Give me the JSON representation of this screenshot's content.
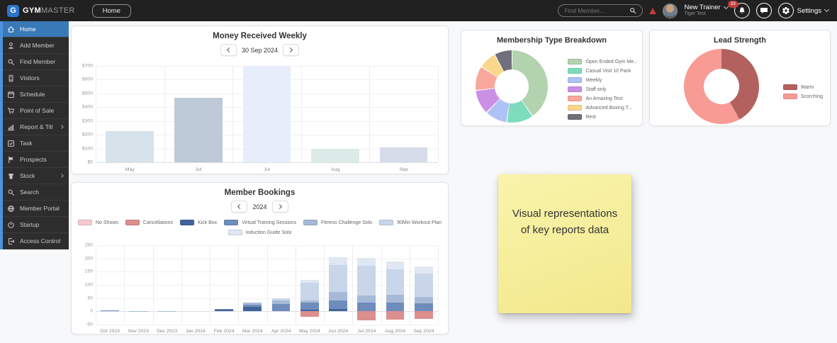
{
  "topbar": {
    "brand": {
      "logo_letter": "G",
      "name_bold": "GYM",
      "name_light": "MASTER"
    },
    "home_button": "Home",
    "search_placeholder": "Find Member...",
    "user": {
      "name": "New Trainer",
      "subtitle": "Tiger Test"
    },
    "notification_badge": "33",
    "settings_label": "Settings"
  },
  "sidebar": {
    "active_color": "#3a79b8",
    "items": [
      {
        "label": "Home",
        "icon": "home",
        "active": true,
        "has_submenu": false
      },
      {
        "label": "Add Member",
        "icon": "add-member",
        "active": false,
        "has_submenu": false
      },
      {
        "label": "Find Member",
        "icon": "find-member",
        "active": false,
        "has_submenu": false
      },
      {
        "label": "Visitors",
        "icon": "visitors",
        "active": false,
        "has_submenu": false
      },
      {
        "label": "Schedule",
        "icon": "schedule",
        "active": false,
        "has_submenu": false
      },
      {
        "label": "Point of Sale",
        "icon": "point-of-sale",
        "active": false,
        "has_submenu": false
      },
      {
        "label": "Report & Till",
        "icon": "report-till",
        "active": false,
        "has_submenu": true
      },
      {
        "label": "Task",
        "icon": "task",
        "active": false,
        "has_submenu": false
      },
      {
        "label": "Prospects",
        "icon": "prospects",
        "active": false,
        "has_submenu": false
      },
      {
        "label": "Stock",
        "icon": "stock",
        "active": false,
        "has_submenu": true
      },
      {
        "label": "Search",
        "icon": "search",
        "active": false,
        "has_submenu": false
      },
      {
        "label": "Member Portal",
        "icon": "member-portal",
        "active": false,
        "has_submenu": false
      },
      {
        "label": "Startup",
        "icon": "startup",
        "active": false,
        "has_submenu": false
      },
      {
        "label": "Access Control",
        "icon": "access-control",
        "active": false,
        "has_submenu": false
      }
    ]
  },
  "sticky_note": {
    "text": "Visual representations of key reports data",
    "color": "#f2e88c"
  },
  "chart_data": [
    {
      "id": "money_received_weekly",
      "type": "bar",
      "title": "Money Received Weekly",
      "nav": {
        "label": "30 Sep 2024"
      },
      "categories": [
        "May",
        "Jul",
        "Jul",
        "Aug",
        "Sep"
      ],
      "values": [
        225,
        470,
        700,
        100,
        110
      ],
      "bar_colors": [
        "#d7e2ea",
        "#bec9d7",
        "#e7eef9",
        "#dcebe7",
        "#d6dcea"
      ],
      "ylim": [
        0,
        700
      ],
      "yticks": [
        0,
        100,
        200,
        300,
        400,
        500,
        600,
        700
      ],
      "y_prefix": "$",
      "grid": true
    },
    {
      "id": "membership_type_breakdown",
      "type": "pie",
      "title": "Membership Type Breakdown",
      "legend_position": "right",
      "slice_gap": true,
      "slices": [
        {
          "label": "Open Ended Gym Me...",
          "value": 40,
          "color": "#b2d3ae"
        },
        {
          "label": "Casual Visit 10 Pack",
          "value": 12,
          "color": "#7cdcbc"
        },
        {
          "label": "Weekly",
          "value": 10,
          "color": "#aec2f5"
        },
        {
          "label": "Staff only",
          "value": 11,
          "color": "#cb8fe6"
        },
        {
          "label": "An Amazing Test",
          "value": 11,
          "color": "#f9a99c"
        },
        {
          "label": "Advanced Boxing T...",
          "value": 8,
          "color": "#fbd78c"
        },
        {
          "label": "Rest",
          "value": 8,
          "color": "#6f707c"
        }
      ]
    },
    {
      "id": "lead_strength",
      "type": "pie",
      "title": "Lead Strength",
      "legend_position": "right",
      "slice_gap": false,
      "slices": [
        {
          "label": "Warm",
          "value": 42,
          "color": "#b2615e"
        },
        {
          "label": "Scorching",
          "value": 58,
          "color": "#f79b94"
        }
      ]
    },
    {
      "id": "member_bookings",
      "type": "stacked-bar",
      "title": "Member Bookings",
      "nav": {
        "label": "2024"
      },
      "ylim": [
        -50,
        250
      ],
      "yticks": [
        -50,
        0,
        50,
        100,
        150,
        200,
        250
      ],
      "grid": true,
      "categories": [
        "Oct 2023",
        "Nov 2023",
        "Dec 2023",
        "Jan 2024",
        "Feb 2024",
        "Mar 2024",
        "Apr 2024",
        "May 2024",
        "Jun 2024",
        "Jul 2024",
        "Aug 2024",
        "Sep 2024"
      ],
      "series": [
        {
          "name": "No Shows",
          "color": "#f5c9cf",
          "values": [
            0,
            0,
            0,
            0,
            0,
            0,
            0,
            0,
            0,
            0,
            0,
            0
          ]
        },
        {
          "name": "Cancellations",
          "color": "#dd8e8e",
          "values": [
            0,
            0,
            0,
            0,
            0,
            0,
            0,
            -20,
            0,
            -33,
            -30,
            -28
          ]
        },
        {
          "name": "Kick Box",
          "color": "#41639b",
          "values": [
            0,
            0,
            0,
            0,
            8,
            18,
            0,
            5,
            10,
            0,
            0,
            0
          ]
        },
        {
          "name": "Virtual Training Sessions",
          "color": "#6e8cbc",
          "values": [
            3,
            0,
            0,
            0,
            2,
            8,
            28,
            28,
            30,
            32,
            32,
            30
          ]
        },
        {
          "name": "Fitness Challenge Solo",
          "color": "#a6bad8",
          "values": [
            0,
            2,
            2,
            0,
            0,
            8,
            12,
            7,
            32,
            27,
            30,
            25
          ]
        },
        {
          "name": "90Min Workout Plan",
          "color": "#c9d5e9",
          "values": [
            0,
            0,
            0,
            0,
            0,
            0,
            8,
            68,
            103,
            112,
            97,
            87
          ]
        },
        {
          "name": "Induction Guide Solo",
          "color": "#dfe7f3",
          "values": [
            0,
            0,
            0,
            0,
            0,
            0,
            0,
            12,
            30,
            32,
            30,
            28
          ]
        }
      ]
    }
  ]
}
